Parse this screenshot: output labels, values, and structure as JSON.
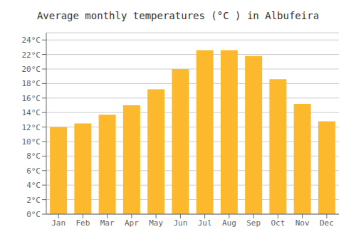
{
  "chart_data": {
    "type": "bar",
    "title": "Average monthly temperatures (°C ) in Albufeira",
    "categories": [
      "Jan",
      "Feb",
      "Mar",
      "Apr",
      "May",
      "Jun",
      "Jul",
      "Aug",
      "Sep",
      "Oct",
      "Nov",
      "Dec"
    ],
    "values": [
      12.0,
      12.5,
      13.7,
      15.0,
      17.2,
      20.0,
      22.6,
      22.6,
      21.8,
      18.6,
      15.2,
      12.8
    ],
    "color": "#FDB92E",
    "ylim": [
      0,
      25
    ],
    "yticks": [
      {
        "value": 0,
        "label": "0°C"
      },
      {
        "value": 2,
        "label": "2°C"
      },
      {
        "value": 4,
        "label": "4°C"
      },
      {
        "value": 6,
        "label": "6°C"
      },
      {
        "value": 8,
        "label": "8°C"
      },
      {
        "value": 10,
        "label": "10°C"
      },
      {
        "value": 12,
        "label": "12°C"
      },
      {
        "value": 14,
        "label": "14°C"
      },
      {
        "value": 16,
        "label": "16°C"
      },
      {
        "value": 18,
        "label": "18°C"
      },
      {
        "value": 20,
        "label": "20°C"
      },
      {
        "value": 22,
        "label": "22°C"
      },
      {
        "value": 24,
        "label": "24°C"
      }
    ],
    "grid": true
  }
}
